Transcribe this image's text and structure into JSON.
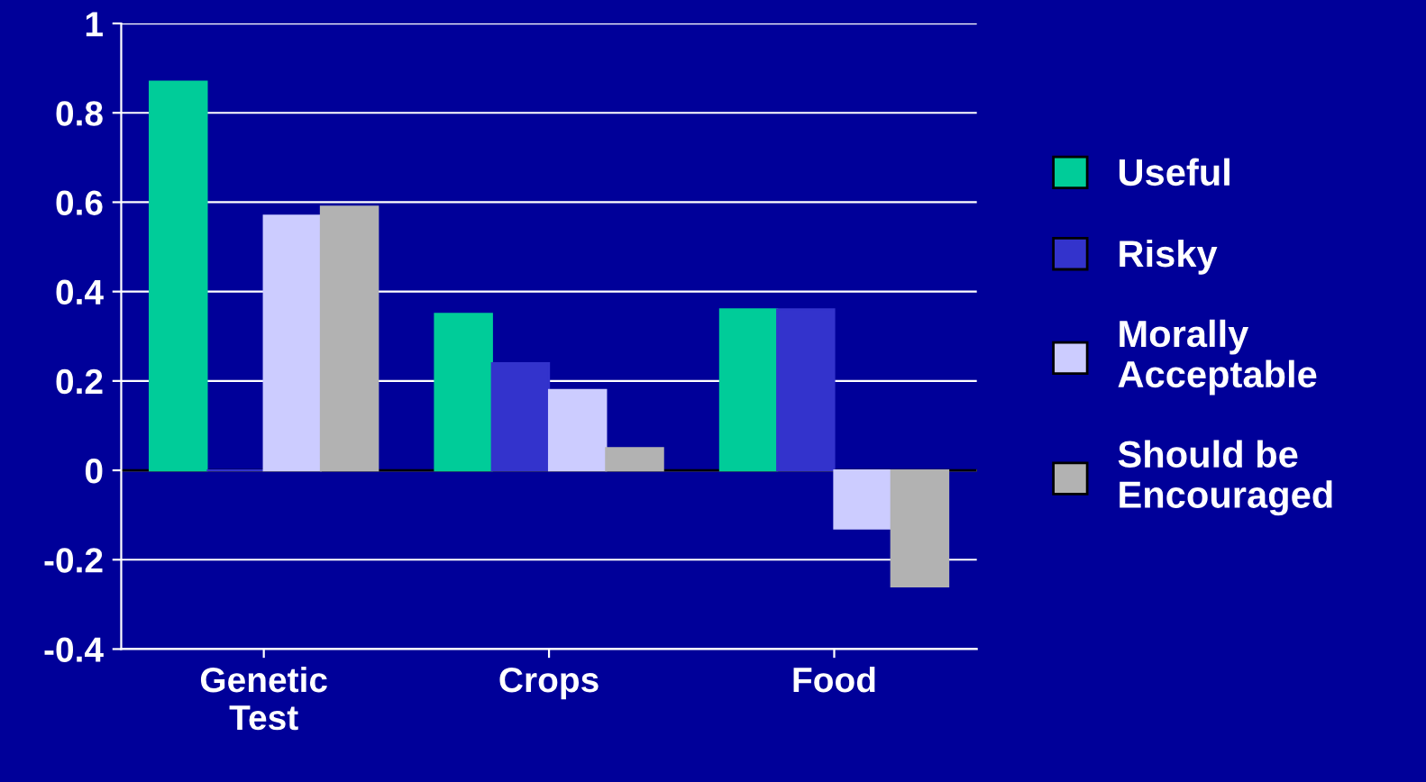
{
  "chart_data": {
    "type": "bar",
    "categories": [
      "Genetic\nTest",
      "Crops",
      "Food"
    ],
    "series": [
      {
        "name": "Useful",
        "color": "#00cc99",
        "values": [
          0.87,
          0.35,
          0.36
        ]
      },
      {
        "name": "Risky",
        "color": "#3333cc",
        "values": [
          0,
          0.24,
          0.36
        ]
      },
      {
        "name": "Morally\nAcceptable",
        "color": "#ccccff",
        "values": [
          0.57,
          0.18,
          -0.13
        ]
      },
      {
        "name": "Should be\nEncouraged",
        "color": "#b2b2b2",
        "values": [
          0.59,
          0.05,
          -0.26
        ]
      }
    ],
    "ylim": [
      -0.4,
      1
    ],
    "yticks": [
      -0.4,
      -0.2,
      0,
      0.2,
      0.4,
      0.6,
      0.8,
      1
    ],
    "grid": "y",
    "legend": "right"
  }
}
